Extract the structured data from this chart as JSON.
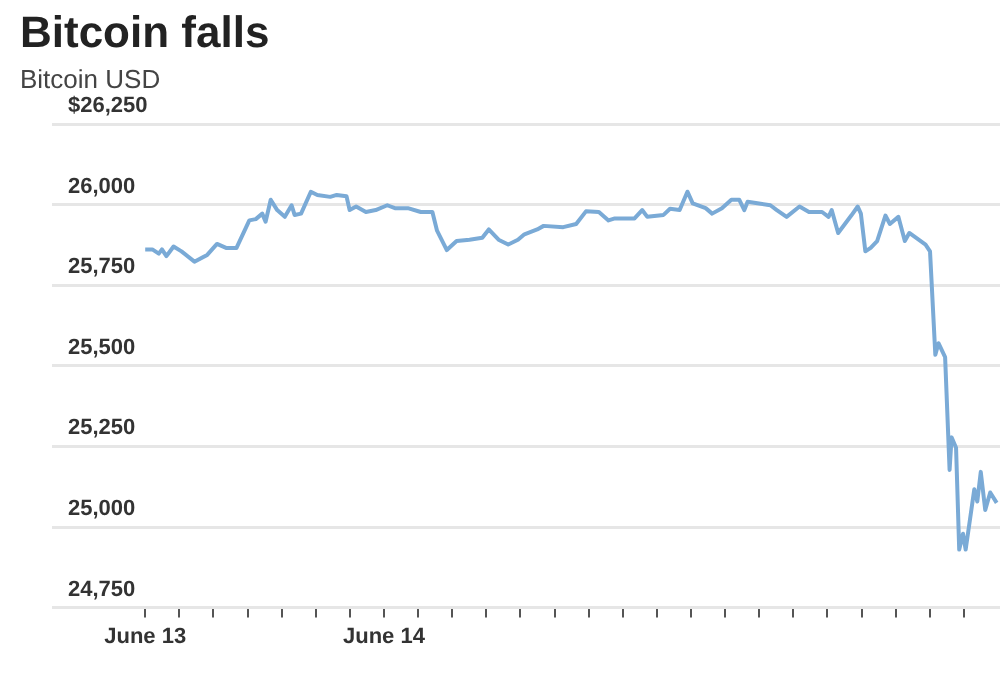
{
  "chart_data": {
    "type": "line",
    "title": "Bitcoin falls",
    "subtitle": "Bitcoin USD",
    "x": [
      "--06-13T00:00",
      "--06-13T00:43",
      "--06-13T01:22",
      "--06-13T01:41",
      "--06-13T02:08",
      "--06-13T02:51",
      "--06-13T03:39",
      "--06-13T04:57",
      "--06-13T06:14",
      "--06-13T07:13",
      "--06-13T08:11",
      "--06-13T09:10",
      "--06-13T10:28",
      "--06-13T11:07",
      "--06-13T11:46",
      "--06-13T12:06",
      "--06-13T12:37",
      "--06-13T13:16",
      "--06-13T14:02",
      "--06-13T14:43",
      "--06-13T15:01",
      "--06-13T15:40",
      "--06-13T16:39",
      "--06-13T17:18",
      "--06-13T18:36",
      "--06-13T19:15",
      "--06-13T20:14",
      "--06-13T20:33",
      "--06-13T21:12",
      "--06-13T22:11",
      "--06-13T23:10",
      "--06-14T00:20",
      "--06-14T01:06",
      "--06-14T02:24",
      "--06-14T03:42",
      "--06-14T04:52",
      "--06-14T05:20",
      "--06-14T06:19",
      "--06-14T07:18",
      "--06-14T08:36",
      "--06-14T09:53",
      "--06-14T10:32",
      "--06-14T11:31",
      "--06-14T12:29",
      "--06-14T13:28",
      "--06-14T14:07",
      "--06-14T15:24",
      "--06-14T16:03",
      "--06-14T18:01",
      "--06-14T19:19",
      "--06-14T20:18",
      "--06-14T21:36",
      "--06-14T22:34",
      "--06-14T23:12",
      "--06-15T01:11",
      "--06-15T01:57",
      "--06-15T02:28",
      "--06-15T04:06",
      "--06-15T04:45",
      "--06-15T05:43",
      "--06-15T06:30",
      "--06-15T07:02",
      "--06-15T08:20",
      "--06-15T08:59",
      "--06-15T09:58",
      "--06-15T10:55",
      "--06-15T11:43",
      "--06-15T12:13",
      "--06-15T12:33",
      "--06-15T13:32",
      "--06-15T14:50",
      "--06-15T15:29",
      "--06-15T16:28",
      "--06-15T17:46",
      "--06-15T18:43",
      "--06-15T20:02",
      "--06-15T20:41",
      "--06-15T21:00",
      "--06-15T21:39",
      "--06-15T22:58",
      "--06-15T23:37",
      "--06-15T23:56",
      "--06-16T00:23",
      "--06-16T00:55",
      "--06-16T01:34",
      "--06-16T02:24",
      "--06-16T02:51",
      "--06-16T03:42",
      "--06-16T04:21",
      "--06-16T04:48",
      "--06-16T06:26",
      "--06-16T06:53",
      "--06-16T07:25",
      "--06-16T07:44",
      "--06-16T08:24",
      "--06-16T08:51",
      "--06-16T09:03",
      "--06-16T09:30",
      "--06-16T09:49",
      "--06-16T10:12",
      "--06-16T10:28",
      "--06-16T11:20",
      "--06-16T11:38",
      "--06-16T11:59",
      "--06-16T12:26",
      "--06-16T12:56",
      "--06-16T13:35"
    ],
    "series": [
      {
        "color": "#7aaad6",
        "values": [
          25861,
          25861,
          25848,
          25861,
          25840,
          25870,
          25855,
          25823,
          25844,
          25878,
          25865,
          25865,
          25951,
          25955,
          25972,
          25947,
          26015,
          25983,
          25962,
          25998,
          25968,
          25972,
          26040,
          26030,
          26024,
          26030,
          26026,
          25983,
          25994,
          25977,
          25983,
          25998,
          25989,
          25989,
          25977,
          25977,
          25919,
          25859,
          25887,
          25891,
          25897,
          25923,
          25891,
          25876,
          25891,
          25908,
          25923,
          25934,
          25930,
          25940,
          25979,
          25977,
          25951,
          25957,
          25957,
          25983,
          25962,
          25968,
          25987,
          25983,
          26040,
          26004,
          25989,
          25972,
          25989,
          26015,
          26015,
          25983,
          26009,
          26004,
          25998,
          25983,
          25962,
          25994,
          25977,
          25977,
          25962,
          25983,
          25912,
          25966,
          25994,
          25972,
          25855,
          25866,
          25887,
          25966,
          25940,
          25962,
          25887,
          25912,
          25876,
          25855,
          25534,
          25570,
          25527,
          25177,
          25278,
          25246,
          24930,
          24979,
          24930,
          25117,
          25079,
          25171,
          25053,
          25107,
          25075
        ]
      }
    ],
    "xlim": [
      "--06-12T14:38",
      "--06-16T13:55"
    ],
    "xticks": [
      {
        "value": "--06-13T00:00",
        "label": "June 13"
      },
      {
        "value": "--06-13T03:26",
        "label": null
      },
      {
        "value": "--06-13T06:51",
        "label": null
      },
      {
        "value": "--06-13T10:17",
        "label": null
      },
      {
        "value": "--06-13T13:43",
        "label": null
      },
      {
        "value": "--06-13T17:09",
        "label": null
      },
      {
        "value": "--06-13T20:34",
        "label": null
      },
      {
        "value": "--06-14T00:00",
        "label": "June 14"
      },
      {
        "value": "--06-14T03:26",
        "label": null
      },
      {
        "value": "--06-14T06:51",
        "label": null
      },
      {
        "value": "--06-14T10:17",
        "label": null
      },
      {
        "value": "--06-14T13:43",
        "label": null
      },
      {
        "value": "--06-14T17:09",
        "label": null
      },
      {
        "value": "--06-14T20:34",
        "label": null
      },
      {
        "value": "--06-15T00:00",
        "label": null
      },
      {
        "value": "--06-15T03:26",
        "label": null
      },
      {
        "value": "--06-15T06:51",
        "label": null
      },
      {
        "value": "--06-15T10:17",
        "label": null
      },
      {
        "value": "--06-15T13:43",
        "label": null
      },
      {
        "value": "--06-15T17:09",
        "label": null
      },
      {
        "value": "--06-15T20:34",
        "label": null
      },
      {
        "value": "--06-16T00:00",
        "label": null
      },
      {
        "value": "--06-16T03:26",
        "label": null
      },
      {
        "value": "--06-16T06:51",
        "label": null
      },
      {
        "value": "--06-16T10:17",
        "label": null
      }
    ],
    "ylim": [
      24750,
      26250
    ],
    "yticks": [
      {
        "value": 24750,
        "label": "24,750"
      },
      {
        "value": 25000,
        "label": "25,000"
      },
      {
        "value": 25250,
        "label": "25,250"
      },
      {
        "value": 25500,
        "label": "25,500"
      },
      {
        "value": 25750,
        "label": "25,750"
      },
      {
        "value": 26000,
        "label": "26,000"
      },
      {
        "value": 26250,
        "label": "$26,250"
      }
    ],
    "grid": "y",
    "marker": "none",
    "line_style": "solid"
  }
}
